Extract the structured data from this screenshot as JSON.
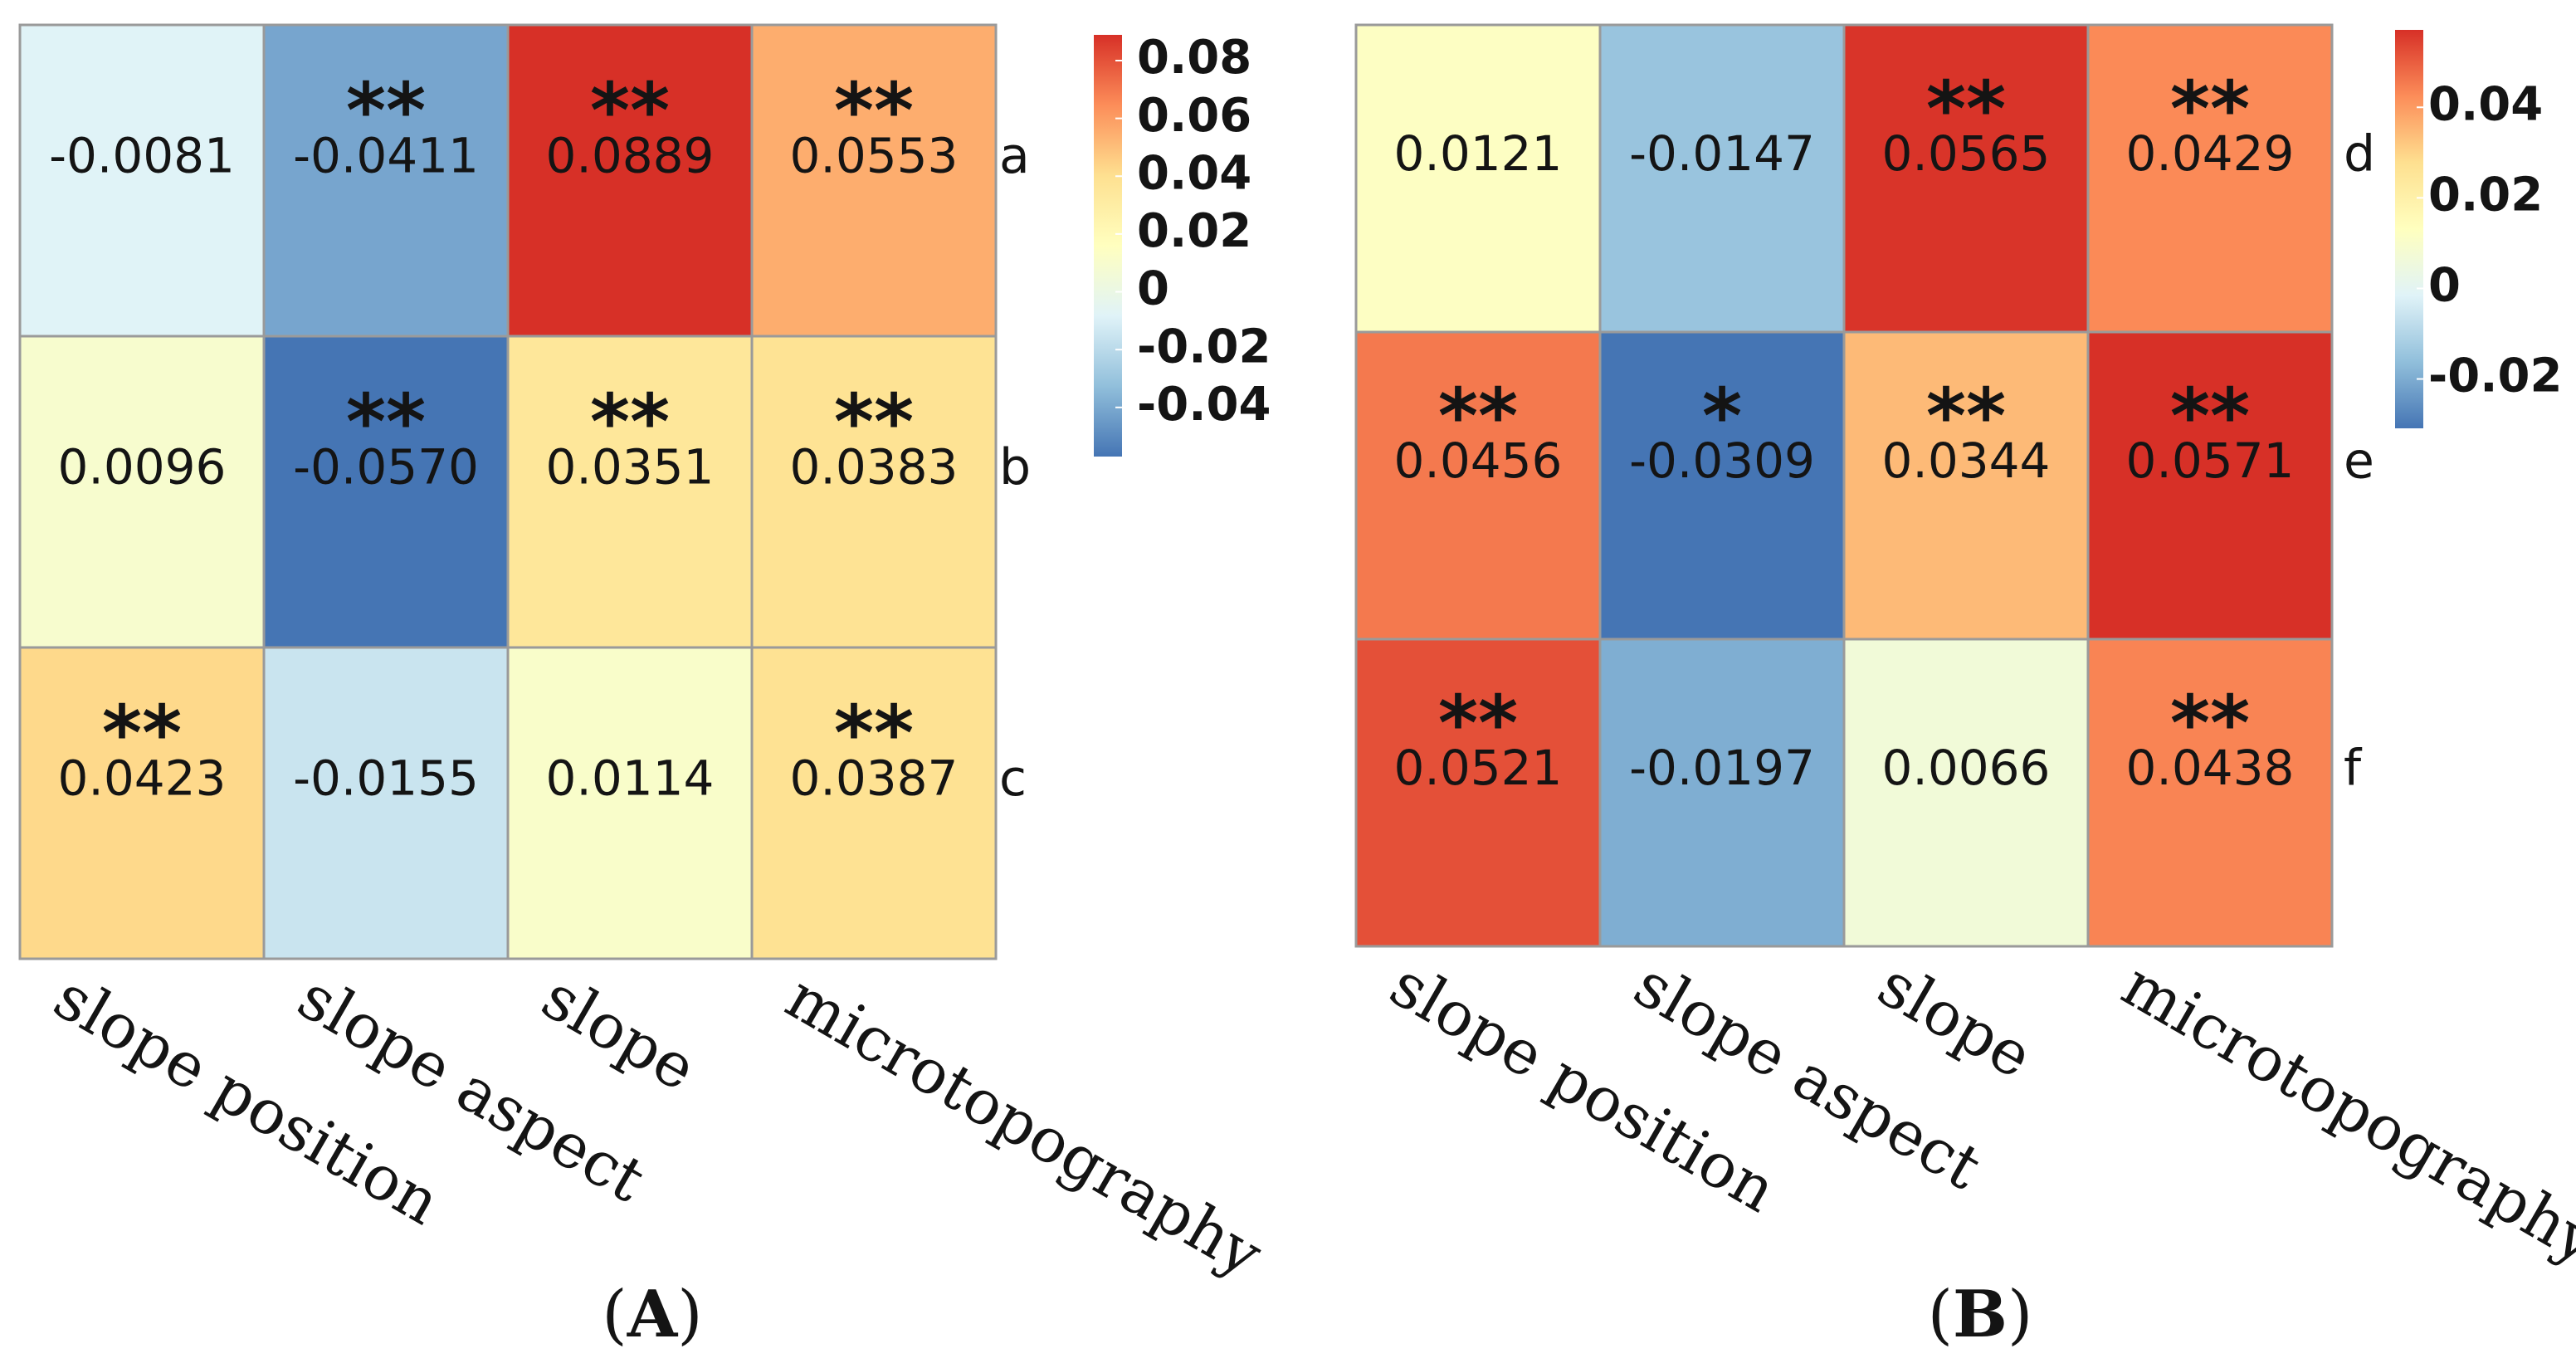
{
  "chart_data": [
    {
      "type": "heatmap",
      "panel": "(A)",
      "panel_letter": "A",
      "columns": [
        "slope position",
        "slope aspect",
        "slope",
        "microtopography"
      ],
      "rows": [
        "a",
        "b",
        "c"
      ],
      "values": [
        [
          -0.0081,
          -0.0411,
          0.0889,
          0.0553
        ],
        [
          0.0096,
          -0.057,
          0.0351,
          0.0383
        ],
        [
          0.0423,
          -0.0155,
          0.0114,
          0.0387
        ]
      ],
      "labels": [
        [
          "-0.0081",
          "-0.0411",
          "0.0889",
          "0.0553"
        ],
        [
          "0.0096",
          "-0.0570",
          "0.0351",
          "0.0383"
        ],
        [
          "0.0423",
          "-0.0155",
          "0.0114",
          "0.0387"
        ]
      ],
      "significance": [
        [
          "",
          "**",
          "**",
          "**"
        ],
        [
          "",
          "**",
          "**",
          "**"
        ],
        [
          "**",
          "",
          "",
          "**"
        ]
      ],
      "colorbar": {
        "ticks": [
          "0.08",
          "0.06",
          "0.04",
          "0.02",
          "0",
          "-0.02",
          "-0.04"
        ],
        "tick_values": [
          0.08,
          0.06,
          0.04,
          0.02,
          0,
          -0.02,
          -0.04
        ],
        "range": [
          -0.057,
          0.0889
        ]
      }
    },
    {
      "type": "heatmap",
      "panel": "(B)",
      "panel_letter": "B",
      "columns": [
        "slope position",
        "slope aspect",
        "slope",
        "microtopography"
      ],
      "rows": [
        "d",
        "e",
        "f"
      ],
      "values": [
        [
          0.0121,
          -0.0147,
          0.0565,
          0.0429
        ],
        [
          0.0456,
          -0.0309,
          0.0344,
          0.0571
        ],
        [
          0.0521,
          -0.0197,
          0.0066,
          0.0438
        ]
      ],
      "labels": [
        [
          "0.0121",
          "-0.0147",
          "0.0565",
          "0.0429"
        ],
        [
          "0.0456",
          "-0.0309",
          "0.0344",
          "0.0571"
        ],
        [
          "0.0521",
          "-0.0197",
          "0.0066",
          "0.0438"
        ]
      ],
      "significance": [
        [
          "",
          "",
          "**",
          "**"
        ],
        [
          "**",
          "*",
          "**",
          "**"
        ],
        [
          "**",
          "",
          "",
          "**"
        ]
      ],
      "colorbar": {
        "ticks": [
          "0.04",
          "0.02",
          "0",
          "-0.02"
        ],
        "tick_values": [
          0.04,
          0.02,
          0,
          -0.02
        ],
        "range": [
          -0.0309,
          0.0571
        ]
      }
    }
  ],
  "colors": {
    "palette": [
      "#4575b4",
      "#91bfdb",
      "#e0f3f8",
      "#ffffbf",
      "#fee090",
      "#fc8d59",
      "#d73027"
    ],
    "grid_line": "#9a9a9a",
    "text": "#141414"
  }
}
